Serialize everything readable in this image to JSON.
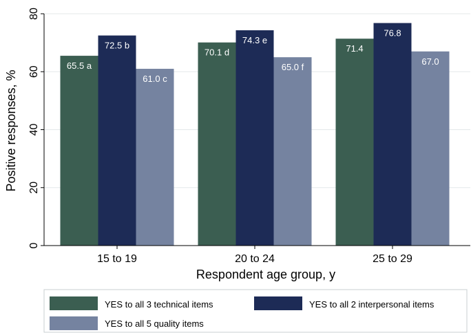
{
  "chart_data": {
    "type": "bar",
    "title": "",
    "xlabel": "Respondent age group, y",
    "ylabel": "Positive responses, %",
    "ylim": [
      0,
      80
    ],
    "yticks": [
      0,
      20,
      40,
      60,
      80
    ],
    "grid": true,
    "categories": [
      "15 to 19",
      "20 to 24",
      "25 to 29"
    ],
    "series": [
      {
        "name": "YES to all 3 technical items",
        "color": "#3b5e51",
        "values": [
          65.5,
          70.1,
          71.4
        ],
        "labels": [
          "65.5 a",
          "70.1 d",
          "71.4"
        ]
      },
      {
        "name": "YES to all 2 interpersonal items",
        "color": "#1d2b56",
        "values": [
          72.5,
          74.3,
          76.8
        ],
        "labels": [
          "72.5 b",
          "74.3 e",
          "76.8"
        ]
      },
      {
        "name": "YES to all 5 quality items",
        "color": "#7583a0",
        "values": [
          61.0,
          65.0,
          67.0
        ],
        "labels": [
          "61.0 c",
          "65.0 f",
          "67.0"
        ]
      }
    ],
    "legend": "bottom"
  }
}
